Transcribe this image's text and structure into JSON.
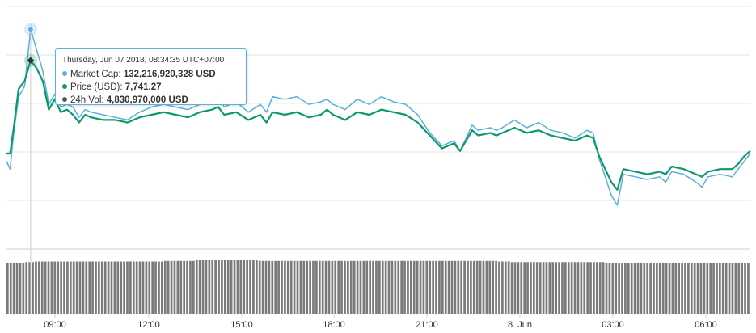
{
  "chart_data": {
    "type": "line",
    "x_tick_labels": [
      "09:00",
      "12:00",
      "15:00",
      "18:00",
      "21:00",
      "8. Jun",
      "03:00",
      "06:00"
    ],
    "series": [
      {
        "name": "Market Cap",
        "color": "#58b0dd",
        "values": [
          [
            0,
            -0.3
          ],
          [
            0.3,
            -0.6
          ],
          [
            0.6,
            0.8
          ],
          [
            1.0,
            2.2
          ],
          [
            1.5,
            2.6
          ],
          [
            2.0,
            4.8
          ],
          [
            2.5,
            4.0
          ],
          [
            3.0,
            3.2
          ],
          [
            3.5,
            1.9
          ],
          [
            4.0,
            2.3
          ],
          [
            4.5,
            1.8
          ],
          [
            5.0,
            1.9
          ],
          [
            5.5,
            1.8
          ],
          [
            6.0,
            1.4
          ],
          [
            6.5,
            1.7
          ],
          [
            7.0,
            1.6
          ],
          [
            8.0,
            1.5
          ],
          [
            9.0,
            1.4
          ],
          [
            10.0,
            1.3
          ],
          [
            11.0,
            1.6
          ],
          [
            12.0,
            1.8
          ],
          [
            13.0,
            1.9
          ],
          [
            14.0,
            1.8
          ],
          [
            15.0,
            1.7
          ],
          [
            16.0,
            1.9
          ],
          [
            17.0,
            2.0
          ],
          [
            17.5,
            2.3
          ],
          [
            18.0,
            1.8
          ],
          [
            19.0,
            2.0
          ],
          [
            20.0,
            1.6
          ],
          [
            21.0,
            1.9
          ],
          [
            21.5,
            1.6
          ],
          [
            22.0,
            2.2
          ],
          [
            23.0,
            2.1
          ],
          [
            24.0,
            2.2
          ],
          [
            25.0,
            1.9
          ],
          [
            26.0,
            2.0
          ],
          [
            26.5,
            2.1
          ],
          [
            27.0,
            1.9
          ],
          [
            28.0,
            1.7
          ],
          [
            29.0,
            2.1
          ],
          [
            30.0,
            1.9
          ],
          [
            31.0,
            2.2
          ],
          [
            32.0,
            2.0
          ],
          [
            33.0,
            1.9
          ],
          [
            34.0,
            1.5
          ],
          [
            35.0,
            0.8
          ],
          [
            36.0,
            0.3
          ],
          [
            37.0,
            0.5
          ],
          [
            37.5,
            0.1
          ],
          [
            38.0,
            0.6
          ],
          [
            38.5,
            1.1
          ],
          [
            39.0,
            0.9
          ],
          [
            40.0,
            1.0
          ],
          [
            40.5,
            0.9
          ],
          [
            41.0,
            1.0
          ],
          [
            42.0,
            1.3
          ],
          [
            43.0,
            1.0
          ],
          [
            44.0,
            1.2
          ],
          [
            45.0,
            0.9
          ],
          [
            46.0,
            0.8
          ],
          [
            47.0,
            0.6
          ],
          [
            48.0,
            0.9
          ],
          [
            48.5,
            0.8
          ],
          [
            49.0,
            -0.2
          ],
          [
            50.0,
            -1.6
          ],
          [
            50.5,
            -2.0
          ],
          [
            51.0,
            -0.8
          ],
          [
            52.0,
            -0.9
          ],
          [
            53.0,
            -1.0
          ],
          [
            54.0,
            -0.9
          ],
          [
            54.5,
            -1.1
          ],
          [
            55.0,
            -0.7
          ],
          [
            56.0,
            -0.8
          ],
          [
            57.0,
            -1.1
          ],
          [
            57.5,
            -1.3
          ],
          [
            58.0,
            -0.9
          ],
          [
            59.0,
            -0.8
          ],
          [
            60.0,
            -0.9
          ],
          [
            60.5,
            -0.6
          ],
          [
            61.0,
            -0.3
          ],
          [
            61.5,
            -0.0
          ]
        ]
      },
      {
        "name": "Price (USD)",
        "color": "#0c9a6c",
        "values": [
          [
            0,
            0.0
          ],
          [
            0.3,
            -0.0
          ],
          [
            0.6,
            1.0
          ],
          [
            1.0,
            2.5
          ],
          [
            1.5,
            2.8
          ],
          [
            2.0,
            3.6
          ],
          [
            2.5,
            3.3
          ],
          [
            3.0,
            2.8
          ],
          [
            3.5,
            1.7
          ],
          [
            4.0,
            2.1
          ],
          [
            4.5,
            1.6
          ],
          [
            5.0,
            1.7
          ],
          [
            5.5,
            1.5
          ],
          [
            6.0,
            1.2
          ],
          [
            6.5,
            1.5
          ],
          [
            7.0,
            1.4
          ],
          [
            8.0,
            1.3
          ],
          [
            9.0,
            1.3
          ],
          [
            10.0,
            1.2
          ],
          [
            11.0,
            1.4
          ],
          [
            12.0,
            1.5
          ],
          [
            13.0,
            1.6
          ],
          [
            14.0,
            1.5
          ],
          [
            15.0,
            1.4
          ],
          [
            16.0,
            1.6
          ],
          [
            17.0,
            1.7
          ],
          [
            17.5,
            1.8
          ],
          [
            18.0,
            1.5
          ],
          [
            19.0,
            1.6
          ],
          [
            20.0,
            1.3
          ],
          [
            21.0,
            1.5
          ],
          [
            21.5,
            1.2
          ],
          [
            22.0,
            1.6
          ],
          [
            23.0,
            1.5
          ],
          [
            24.0,
            1.6
          ],
          [
            25.0,
            1.4
          ],
          [
            26.0,
            1.5
          ],
          [
            26.5,
            1.7
          ],
          [
            27.0,
            1.5
          ],
          [
            28.0,
            1.3
          ],
          [
            29.0,
            1.6
          ],
          [
            30.0,
            1.5
          ],
          [
            31.0,
            1.7
          ],
          [
            32.0,
            1.6
          ],
          [
            33.0,
            1.5
          ],
          [
            34.0,
            1.2
          ],
          [
            35.0,
            0.7
          ],
          [
            36.0,
            0.2
          ],
          [
            37.0,
            0.4
          ],
          [
            37.5,
            0.1
          ],
          [
            38.0,
            0.5
          ],
          [
            38.5,
            0.9
          ],
          [
            39.0,
            0.7
          ],
          [
            40.0,
            0.8
          ],
          [
            40.5,
            0.7
          ],
          [
            41.0,
            0.8
          ],
          [
            42.0,
            1.0
          ],
          [
            43.0,
            0.8
          ],
          [
            44.0,
            0.9
          ],
          [
            45.0,
            0.7
          ],
          [
            46.0,
            0.6
          ],
          [
            47.0,
            0.5
          ],
          [
            48.0,
            0.7
          ],
          [
            48.5,
            0.6
          ],
          [
            49.0,
            -0.1
          ],
          [
            50.0,
            -1.1
          ],
          [
            50.5,
            -1.4
          ],
          [
            51.0,
            -0.6
          ],
          [
            52.0,
            -0.7
          ],
          [
            53.0,
            -0.8
          ],
          [
            54.0,
            -0.7
          ],
          [
            54.5,
            -0.8
          ],
          [
            55.0,
            -0.5
          ],
          [
            56.0,
            -0.6
          ],
          [
            57.0,
            -0.8
          ],
          [
            57.5,
            -0.9
          ],
          [
            58.0,
            -0.7
          ],
          [
            59.0,
            -0.6
          ],
          [
            60.0,
            -0.6
          ],
          [
            60.5,
            -0.4
          ],
          [
            61.0,
            -0.1
          ],
          [
            61.5,
            0.1
          ]
        ]
      }
    ],
    "volume": {
      "color": "#7a7a7a",
      "count": 230,
      "values": [
        0.82,
        0.82,
        0.82,
        0.83,
        0.83,
        0.83,
        0.84,
        0.84,
        0.84,
        0.85,
        0.85,
        0.85,
        0.85,
        0.85,
        0.85,
        0.85,
        0.85,
        0.85,
        0.85,
        0.85,
        0.85,
        0.85,
        0.85,
        0.85,
        0.85,
        0.85,
        0.85,
        0.85,
        0.85,
        0.85,
        0.85,
        0.85,
        0.85,
        0.85,
        0.85,
        0.85,
        0.85,
        0.85,
        0.85,
        0.85,
        0.85,
        0.85,
        0.85,
        0.85,
        0.85,
        0.85,
        0.85,
        0.85,
        0.85,
        0.85,
        0.86,
        0.86,
        0.86,
        0.86,
        0.86,
        0.86,
        0.86,
        0.86,
        0.86,
        0.86,
        0.87,
        0.87,
        0.87,
        0.87,
        0.87,
        0.87,
        0.87,
        0.87,
        0.87,
        0.87,
        0.87,
        0.87,
        0.87,
        0.87,
        0.87,
        0.87,
        0.87,
        0.87,
        0.87,
        0.87,
        0.86,
        0.86,
        0.86,
        0.86,
        0.86,
        0.86,
        0.86,
        0.86,
        0.86,
        0.86,
        0.86,
        0.86,
        0.86,
        0.86,
        0.86,
        0.86,
        0.86,
        0.86,
        0.86,
        0.86,
        0.86,
        0.86,
        0.86,
        0.86,
        0.86,
        0.86,
        0.86,
        0.86,
        0.86,
        0.86,
        0.86,
        0.86,
        0.86,
        0.86,
        0.86,
        0.86,
        0.86,
        0.86,
        0.86,
        0.86,
        0.86,
        0.86,
        0.86,
        0.86,
        0.86,
        0.86,
        0.86,
        0.86,
        0.86,
        0.86,
        0.86,
        0.86,
        0.86,
        0.86,
        0.86,
        0.86,
        0.86,
        0.86,
        0.86,
        0.86,
        0.86,
        0.86,
        0.86,
        0.86,
        0.86,
        0.86,
        0.86,
        0.86,
        0.86,
        0.86,
        0.86,
        0.86,
        0.86,
        0.86,
        0.86,
        0.86,
        0.85,
        0.85,
        0.85,
        0.85,
        0.84,
        0.84,
        0.84,
        0.84,
        0.84,
        0.84,
        0.84,
        0.84,
        0.84,
        0.84,
        0.84,
        0.84,
        0.84,
        0.84,
        0.84,
        0.84,
        0.84,
        0.84,
        0.84,
        0.84,
        0.84,
        0.84,
        0.84,
        0.84,
        0.84,
        0.84,
        0.84,
        0.84,
        0.84,
        0.84,
        0.83,
        0.83,
        0.83,
        0.83,
        0.83,
        0.83,
        0.83,
        0.83,
        0.83,
        0.83,
        0.83,
        0.83,
        0.83,
        0.83,
        0.83,
        0.83,
        0.83,
        0.83,
        0.83,
        0.83,
        0.83,
        0.83,
        0.83,
        0.83,
        0.83,
        0.83,
        0.83,
        0.83,
        0.83,
        0.83,
        0.83,
        0.83,
        0.83,
        0.83,
        0.83,
        0.83,
        0.83,
        0.83,
        0.83,
        0.83,
        0.83,
        0.83,
        0.83,
        0.83,
        0.83,
        0.83
      ]
    },
    "grid": true
  },
  "tooltip": {
    "title": "Thursday, Jun 07 2018, 08:34:35 UTC+07:00",
    "rows": [
      {
        "label": "Market Cap:",
        "value": "132,216,920,328 USD",
        "color": "#58b0dd"
      },
      {
        "label": "Price (USD):",
        "value": "7,741.27",
        "color": "#0c9a6c"
      },
      {
        "label": "24h Vol:",
        "value": "4,830,970,000 USD",
        "color": "#555555"
      }
    ]
  }
}
